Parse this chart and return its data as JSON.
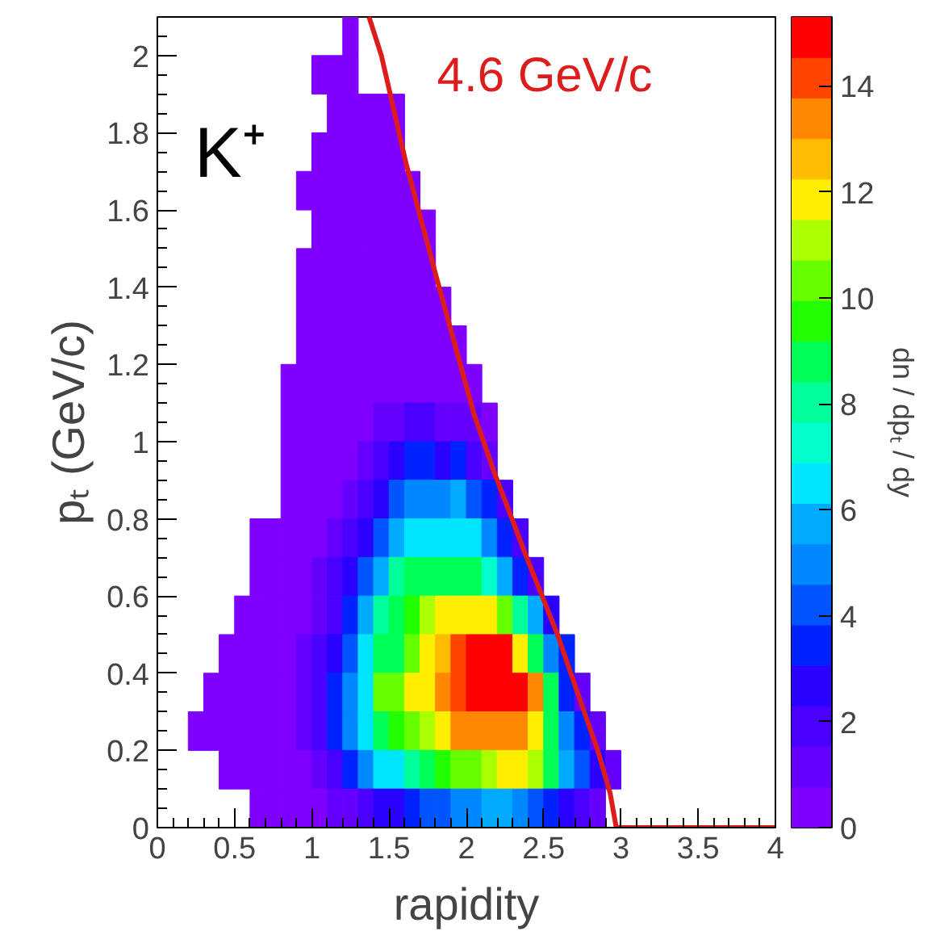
{
  "chart_data": {
    "type": "heatmap",
    "xlabel": "rapidity",
    "ylabel": "pₜ (GeV/c)",
    "clabel": "dn / dpₜ / dy",
    "annotations": [
      "K⁺"
    ],
    "xlim": [
      0,
      4
    ],
    "ylim": [
      0,
      2.1
    ],
    "xticks": [
      0,
      0.5,
      1,
      1.5,
      2,
      2.5,
      3,
      3.5,
      4
    ],
    "yticks": [
      0,
      0.2,
      0.4,
      0.6,
      0.8,
      1,
      1.2,
      1.4,
      1.6,
      1.8,
      2
    ],
    "clim": [
      0,
      15.3
    ],
    "cticks": [
      0,
      2,
      4,
      6,
      8,
      10,
      12,
      14
    ],
    "cells": [
      [
        null,
        null,
        null,
        null,
        null,
        null,
        null,
        null,
        null,
        null,
        null,
        null,
        0.4,
        null,
        null,
        null,
        null,
        null,
        null,
        null,
        null,
        null,
        null,
        null,
        null,
        null,
        null,
        null,
        null,
        null,
        null,
        null,
        null,
        null,
        null,
        null,
        null,
        null,
        null,
        null
      ],
      [
        null,
        null,
        null,
        null,
        null,
        null,
        null,
        null,
        null,
        null,
        0.4,
        0.4,
        0.4,
        null,
        null,
        null,
        null,
        null,
        null,
        null,
        null,
        null,
        null,
        null,
        null,
        null,
        null,
        null,
        null,
        null,
        null,
        null,
        null,
        null,
        null,
        null,
        null,
        null,
        null,
        null
      ],
      [
        null,
        null,
        null,
        null,
        null,
        null,
        null,
        null,
        null,
        null,
        null,
        0.4,
        0.4,
        0.4,
        0.4,
        0.4,
        null,
        null,
        null,
        null,
        null,
        null,
        null,
        null,
        null,
        null,
        null,
        null,
        null,
        null,
        null,
        null,
        null,
        null,
        null,
        null,
        null,
        null,
        null,
        null
      ],
      [
        null,
        null,
        null,
        null,
        null,
        null,
        null,
        null,
        null,
        null,
        0.4,
        0.4,
        0.4,
        0.4,
        0.4,
        0.4,
        null,
        null,
        null,
        null,
        null,
        null,
        null,
        null,
        null,
        null,
        null,
        null,
        null,
        null,
        null,
        null,
        null,
        null,
        null,
        null,
        null,
        null,
        null,
        null
      ],
      [
        null,
        null,
        null,
        null,
        null,
        null,
        null,
        null,
        null,
        0.4,
        0.4,
        0.4,
        0.4,
        0.4,
        0.4,
        0.4,
        0.4,
        null,
        null,
        null,
        null,
        null,
        null,
        null,
        null,
        null,
        null,
        null,
        null,
        null,
        null,
        null,
        null,
        null,
        null,
        null,
        null,
        null,
        null,
        null
      ],
      [
        null,
        null,
        null,
        null,
        null,
        null,
        null,
        null,
        null,
        null,
        0.4,
        0.4,
        0.4,
        0.4,
        0.4,
        0.4,
        0.4,
        0.4,
        null,
        null,
        null,
        null,
        null,
        null,
        null,
        null,
        null,
        null,
        null,
        null,
        null,
        null,
        null,
        null,
        null,
        null,
        null,
        null,
        null,
        null
      ],
      [
        null,
        null,
        null,
        null,
        null,
        null,
        null,
        null,
        null,
        0.4,
        0.4,
        0.4,
        0.4,
        0.4,
        0.4,
        0.4,
        0.4,
        0.4,
        null,
        null,
        null,
        null,
        null,
        null,
        null,
        null,
        null,
        null,
        null,
        null,
        null,
        null,
        null,
        null,
        null,
        null,
        null,
        null,
        null,
        null
      ],
      [
        null,
        null,
        null,
        null,
        null,
        null,
        null,
        null,
        null,
        0.4,
        0.4,
        0.4,
        0.4,
        0.4,
        0.4,
        0.4,
        0.4,
        0.4,
        0.4,
        null,
        null,
        null,
        null,
        null,
        null,
        null,
        null,
        null,
        null,
        null,
        null,
        null,
        null,
        null,
        null,
        null,
        null,
        null,
        null,
        null
      ],
      [
        null,
        null,
        null,
        null,
        null,
        null,
        null,
        null,
        null,
        0.4,
        0.4,
        0.4,
        0.4,
        0.4,
        0.4,
        0.4,
        0.4,
        0.4,
        0.4,
        0.4,
        null,
        null,
        null,
        null,
        null,
        null,
        null,
        null,
        null,
        null,
        null,
        null,
        null,
        null,
        null,
        null,
        null,
        null,
        null,
        null
      ],
      [
        null,
        null,
        null,
        null,
        null,
        null,
        null,
        null,
        0.4,
        0.4,
        0.4,
        0.4,
        0.4,
        0.4,
        0.4,
        0.4,
        0.4,
        0.4,
        0.4,
        0.4,
        0.4,
        null,
        null,
        null,
        null,
        null,
        null,
        null,
        null,
        null,
        null,
        null,
        null,
        null,
        null,
        null,
        null,
        null,
        null,
        null
      ],
      [
        null,
        null,
        null,
        null,
        null,
        null,
        null,
        null,
        0.4,
        0.4,
        0.4,
        0.4,
        0.4,
        0.4,
        1.1,
        1.1,
        1.9,
        1.9,
        1.1,
        1.1,
        1.1,
        0.4,
        null,
        null,
        null,
        null,
        null,
        null,
        null,
        null,
        null,
        null,
        null,
        null,
        null,
        null,
        null,
        null,
        null,
        null
      ],
      [
        null,
        null,
        null,
        null,
        null,
        null,
        null,
        null,
        0.4,
        0.4,
        0.4,
        0.4,
        0.4,
        1.1,
        1.9,
        2.7,
        3.4,
        3.4,
        2.7,
        3.4,
        1.9,
        1.1,
        null,
        null,
        null,
        null,
        null,
        null,
        null,
        null,
        null,
        null,
        null,
        null,
        null,
        null,
        null,
        null,
        null,
        null
      ],
      [
        null,
        null,
        null,
        null,
        null,
        null,
        null,
        null,
        0.4,
        0.4,
        0.4,
        0.4,
        1.1,
        1.9,
        2.7,
        4.2,
        5.0,
        5.0,
        5.0,
        5.7,
        4.2,
        3.4,
        1.9,
        null,
        null,
        null,
        null,
        null,
        null,
        null,
        null,
        null,
        null,
        null,
        null,
        null,
        null,
        null,
        null,
        null
      ],
      [
        null,
        null,
        null,
        null,
        null,
        null,
        0.4,
        0.4,
        0.4,
        0.4,
        0.4,
        1.1,
        1.9,
        2.7,
        4.2,
        5.7,
        6.5,
        6.5,
        6.5,
        6.5,
        6.5,
        5.0,
        3.4,
        1.9,
        null,
        null,
        null,
        null,
        null,
        null,
        null,
        null,
        null,
        null,
        null,
        null,
        null,
        null,
        null,
        null
      ],
      [
        null,
        null,
        null,
        null,
        null,
        null,
        0.4,
        0.4,
        0.4,
        0.4,
        1.1,
        1.9,
        2.7,
        4.2,
        5.7,
        8.0,
        8.8,
        8.8,
        8.8,
        8.8,
        8.8,
        7.3,
        5.7,
        3.4,
        1.9,
        null,
        null,
        null,
        null,
        null,
        null,
        null,
        null,
        null,
        null,
        null,
        null,
        null,
        null,
        null
      ],
      [
        null,
        null,
        null,
        null,
        null,
        0.4,
        0.4,
        0.4,
        0.4,
        0.4,
        1.1,
        1.9,
        3.4,
        5.7,
        8.0,
        8.8,
        9.6,
        11.1,
        11.9,
        11.9,
        11.9,
        11.9,
        10.3,
        8.0,
        5.7,
        2.7,
        null,
        null,
        null,
        null,
        null,
        null,
        null,
        null,
        null,
        null,
        null,
        null,
        null,
        null
      ],
      [
        null,
        null,
        null,
        null,
        0.4,
        0.4,
        0.4,
        0.4,
        0.4,
        1.1,
        1.9,
        2.7,
        4.2,
        6.5,
        8.8,
        8.8,
        10.3,
        11.9,
        12.6,
        14.2,
        14.9,
        14.9,
        14.9,
        11.9,
        8.8,
        5.0,
        3.4,
        null,
        null,
        null,
        null,
        null,
        null,
        null,
        null,
        null,
        null,
        null,
        null,
        null
      ],
      [
        null,
        null,
        null,
        0.4,
        0.4,
        0.4,
        0.4,
        0.4,
        0.4,
        1.1,
        1.9,
        3.4,
        5.0,
        6.5,
        10.3,
        10.3,
        11.9,
        11.9,
        13.4,
        14.2,
        14.9,
        14.9,
        14.9,
        14.9,
        13.4,
        8.8,
        3.4,
        1.1,
        null,
        null,
        null,
        null,
        null,
        null,
        null,
        null,
        null,
        null,
        null,
        null
      ],
      [
        null,
        null,
        0.4,
        0.4,
        0.4,
        0.4,
        0.4,
        0.4,
        0.4,
        1.1,
        1.9,
        3.4,
        5.0,
        6.5,
        8.8,
        9.6,
        10.3,
        11.1,
        11.9,
        13.4,
        13.4,
        13.4,
        13.4,
        13.4,
        11.9,
        8.8,
        5.0,
        3.4,
        1.1,
        null,
        null,
        null,
        null,
        null,
        null,
        null,
        null,
        null,
        null,
        null
      ],
      [
        null,
        null,
        null,
        null,
        0.4,
        0.4,
        0.4,
        0.4,
        0.4,
        0.4,
        1.1,
        1.9,
        3.4,
        5.0,
        6.5,
        6.5,
        8.0,
        8.8,
        9.6,
        10.3,
        10.3,
        11.1,
        11.9,
        11.9,
        11.1,
        8.8,
        5.7,
        4.2,
        2.7,
        1.1,
        null,
        null,
        null,
        null,
        null,
        null,
        null,
        null,
        null,
        null
      ],
      [
        null,
        null,
        null,
        null,
        null,
        null,
        0.4,
        0.4,
        0.4,
        0.4,
        0.4,
        1.1,
        1.1,
        1.9,
        2.7,
        2.7,
        3.4,
        4.2,
        4.2,
        5.0,
        5.0,
        5.7,
        5.7,
        5.0,
        4.2,
        3.4,
        2.7,
        1.9,
        1.1,
        null,
        null,
        null,
        null,
        null,
        null,
        null,
        null,
        null,
        null,
        null
      ]
    ],
    "series": [
      {
        "name": "4.6 GeV/c",
        "type": "line",
        "color": "#dd1c1c",
        "x": [
          1.37,
          1.45,
          1.61,
          1.81,
          2.05,
          2.19,
          2.4,
          2.59,
          2.71,
          2.85,
          2.93,
          2.97,
          4
        ],
        "values": [
          2.1,
          2.0,
          1.72,
          1.42,
          1.07,
          0.91,
          0.69,
          0.5,
          0.36,
          0.2,
          0.09,
          0,
          0
        ]
      }
    ]
  }
}
